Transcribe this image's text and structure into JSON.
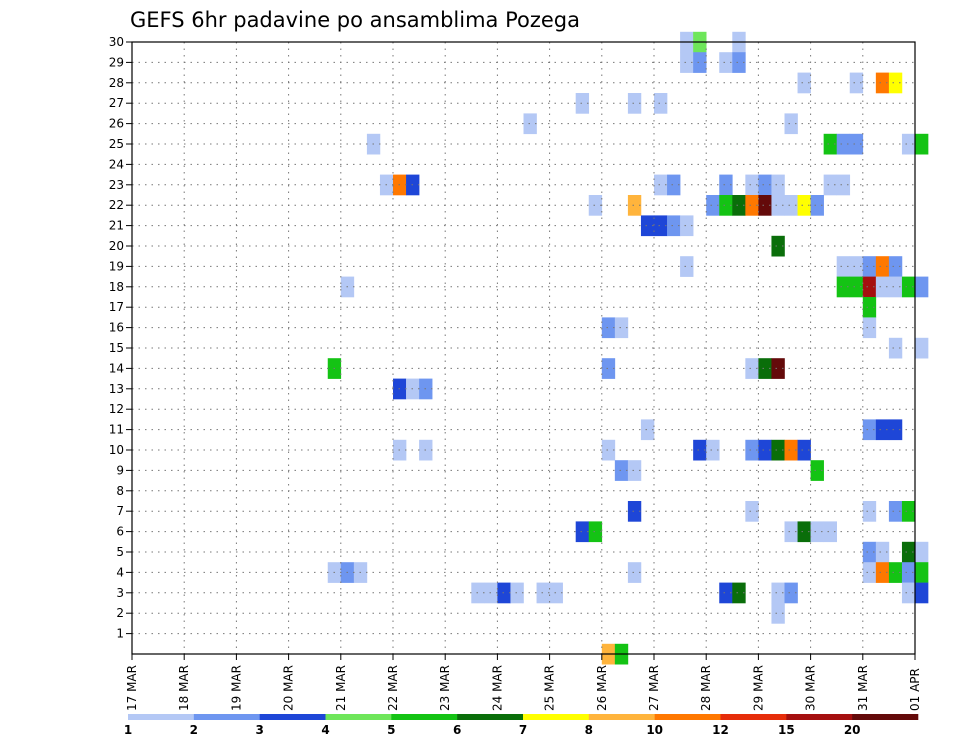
{
  "chart_data": {
    "type": "heatmap",
    "title": "GEFS 6hr padavine po ansamblima Pozega",
    "x_labels": [
      "17 MAR",
      "18 MAR",
      "19 MAR",
      "20 MAR",
      "21 MAR",
      "22 MAR",
      "23 MAR",
      "24 MAR",
      "25 MAR",
      "26 MAR",
      "27 MAR",
      "28 MAR",
      "29 MAR",
      "30 MAR",
      "31 MAR",
      "01 APR"
    ],
    "y_labels": [
      "1",
      "2",
      "3",
      "4",
      "5",
      "6",
      "7",
      "8",
      "9",
      "10",
      "11",
      "12",
      "13",
      "14",
      "15",
      "16",
      "17",
      "18",
      "19",
      "20",
      "21",
      "22",
      "23",
      "24",
      "25",
      "26",
      "27",
      "28",
      "29",
      "30"
    ],
    "steps_per_day": 4,
    "grid": true,
    "legend_position": "bottom",
    "legend": {
      "labels": [
        "1",
        "2",
        "3",
        "4",
        "5",
        "6",
        "7",
        "8",
        "10",
        "12",
        "15",
        "20"
      ],
      "colors": [
        "#b4c8f5",
        "#6e96f0",
        "#1e46d7",
        "#6ee65a",
        "#14c314",
        "#0a6e0a",
        "#ffff00",
        "#ffb43c",
        "#ff7800",
        "#e62d0a",
        "#a50f0f",
        "#640a0a"
      ]
    },
    "cells": [
      {
        "member": 30,
        "step": 42,
        "level": 1
      },
      {
        "member": 30,
        "step": 43,
        "level": 4
      },
      {
        "member": 30,
        "step": 46,
        "level": 1
      },
      {
        "member": 29,
        "step": 42,
        "level": 1
      },
      {
        "member": 29,
        "step": 43,
        "level": 2
      },
      {
        "member": 29,
        "step": 45,
        "level": 1
      },
      {
        "member": 29,
        "step": 46,
        "level": 2
      },
      {
        "member": 28,
        "step": 51,
        "level": 1
      },
      {
        "member": 28,
        "step": 55,
        "level": 1
      },
      {
        "member": 28,
        "step": 57,
        "level": 10
      },
      {
        "member": 28,
        "step": 58,
        "level": 7
      },
      {
        "member": 27,
        "step": 34,
        "level": 1
      },
      {
        "member": 27,
        "step": 38,
        "level": 1
      },
      {
        "member": 27,
        "step": 40,
        "level": 1
      },
      {
        "member": 26,
        "step": 30,
        "level": 1
      },
      {
        "member": 26,
        "step": 50,
        "level": 1
      },
      {
        "member": 25,
        "step": 18,
        "level": 1
      },
      {
        "member": 25,
        "step": 53,
        "level": 5
      },
      {
        "member": 25,
        "step": 54,
        "level": 2
      },
      {
        "member": 25,
        "step": 55,
        "level": 2
      },
      {
        "member": 25,
        "step": 59,
        "level": 1
      },
      {
        "member": 25,
        "step": 60,
        "level": 5
      },
      {
        "member": 23,
        "step": 19,
        "level": 1
      },
      {
        "member": 23,
        "step": 20,
        "level": 10
      },
      {
        "member": 23,
        "step": 21,
        "level": 3
      },
      {
        "member": 23,
        "step": 40,
        "level": 1
      },
      {
        "member": 23,
        "step": 41,
        "level": 2
      },
      {
        "member": 23,
        "step": 45,
        "level": 2
      },
      {
        "member": 23,
        "step": 47,
        "level": 1
      },
      {
        "member": 23,
        "step": 48,
        "level": 2
      },
      {
        "member": 23,
        "step": 49,
        "level": 1
      },
      {
        "member": 23,
        "step": 53,
        "level": 1
      },
      {
        "member": 23,
        "step": 54,
        "level": 1
      },
      {
        "member": 22,
        "step": 35,
        "level": 1
      },
      {
        "member": 22,
        "step": 38,
        "level": 8
      },
      {
        "member": 22,
        "step": 44,
        "level": 2
      },
      {
        "member": 22,
        "step": 45,
        "level": 5
      },
      {
        "member": 22,
        "step": 46,
        "level": 6
      },
      {
        "member": 22,
        "step": 47,
        "level": 10
      },
      {
        "member": 22,
        "step": 48,
        "level": 20
      },
      {
        "member": 22,
        "step": 49,
        "level": 1
      },
      {
        "member": 22,
        "step": 50,
        "level": 1
      },
      {
        "member": 22,
        "step": 51,
        "level": 7
      },
      {
        "member": 22,
        "step": 52,
        "level": 2
      },
      {
        "member": 21,
        "step": 39,
        "level": 3
      },
      {
        "member": 21,
        "step": 40,
        "level": 3
      },
      {
        "member": 21,
        "step": 41,
        "level": 2
      },
      {
        "member": 21,
        "step": 42,
        "level": 1
      },
      {
        "member": 20,
        "step": 49,
        "level": 6
      },
      {
        "member": 19,
        "step": 42,
        "level": 1
      },
      {
        "member": 19,
        "step": 54,
        "level": 1
      },
      {
        "member": 19,
        "step": 55,
        "level": 1
      },
      {
        "member": 19,
        "step": 56,
        "level": 2
      },
      {
        "member": 19,
        "step": 57,
        "level": 10
      },
      {
        "member": 19,
        "step": 58,
        "level": 2
      },
      {
        "member": 18,
        "step": 16,
        "level": 1
      },
      {
        "member": 18,
        "step": 54,
        "level": 5
      },
      {
        "member": 18,
        "step": 55,
        "level": 5
      },
      {
        "member": 18,
        "step": 56,
        "level": 15
      },
      {
        "member": 18,
        "step": 57,
        "level": 1
      },
      {
        "member": 18,
        "step": 58,
        "level": 1
      },
      {
        "member": 18,
        "step": 59,
        "level": 5
      },
      {
        "member": 18,
        "step": 60,
        "level": 2
      },
      {
        "member": 17,
        "step": 56,
        "level": 5
      },
      {
        "member": 16,
        "step": 36,
        "level": 2
      },
      {
        "member": 16,
        "step": 37,
        "level": 1
      },
      {
        "member": 16,
        "step": 56,
        "level": 1
      },
      {
        "member": 15,
        "step": 58,
        "level": 1
      },
      {
        "member": 15,
        "step": 60,
        "level": 1
      },
      {
        "member": 14,
        "step": 15,
        "level": 5
      },
      {
        "member": 14,
        "step": 36,
        "level": 2
      },
      {
        "member": 14,
        "step": 47,
        "level": 1
      },
      {
        "member": 14,
        "step": 48,
        "level": 6
      },
      {
        "member": 14,
        "step": 49,
        "level": 20
      },
      {
        "member": 13,
        "step": 20,
        "level": 3
      },
      {
        "member": 13,
        "step": 21,
        "level": 1
      },
      {
        "member": 13,
        "step": 22,
        "level": 2
      },
      {
        "member": 11,
        "step": 39,
        "level": 1
      },
      {
        "member": 11,
        "step": 56,
        "level": 2
      },
      {
        "member": 11,
        "step": 57,
        "level": 3
      },
      {
        "member": 11,
        "step": 58,
        "level": 3
      },
      {
        "member": 10,
        "step": 20,
        "level": 1
      },
      {
        "member": 10,
        "step": 22,
        "level": 1
      },
      {
        "member": 10,
        "step": 36,
        "level": 1
      },
      {
        "member": 10,
        "step": 43,
        "level": 3
      },
      {
        "member": 10,
        "step": 44,
        "level": 1
      },
      {
        "member": 10,
        "step": 47,
        "level": 2
      },
      {
        "member": 10,
        "step": 48,
        "level": 3
      },
      {
        "member": 10,
        "step": 49,
        "level": 6
      },
      {
        "member": 10,
        "step": 50,
        "level": 10
      },
      {
        "member": 10,
        "step": 51,
        "level": 3
      },
      {
        "member": 9,
        "step": 37,
        "level": 2
      },
      {
        "member": 9,
        "step": 38,
        "level": 1
      },
      {
        "member": 9,
        "step": 52,
        "level": 5
      },
      {
        "member": 7,
        "step": 38,
        "level": 3
      },
      {
        "member": 7,
        "step": 47,
        "level": 1
      },
      {
        "member": 7,
        "step": 56,
        "level": 1
      },
      {
        "member": 7,
        "step": 58,
        "level": 2
      },
      {
        "member": 7,
        "step": 59,
        "level": 5
      },
      {
        "member": 6,
        "step": 34,
        "level": 3
      },
      {
        "member": 6,
        "step": 35,
        "level": 5
      },
      {
        "member": 6,
        "step": 50,
        "level": 1
      },
      {
        "member": 6,
        "step": 51,
        "level": 6
      },
      {
        "member": 6,
        "step": 52,
        "level": 1
      },
      {
        "member": 6,
        "step": 53,
        "level": 1
      },
      {
        "member": 5,
        "step": 56,
        "level": 2
      },
      {
        "member": 5,
        "step": 57,
        "level": 1
      },
      {
        "member": 5,
        "step": 59,
        "level": 6
      },
      {
        "member": 5,
        "step": 60,
        "level": 1
      },
      {
        "member": 4,
        "step": 15,
        "level": 1
      },
      {
        "member": 4,
        "step": 16,
        "level": 2
      },
      {
        "member": 4,
        "step": 17,
        "level": 1
      },
      {
        "member": 4,
        "step": 38,
        "level": 1
      },
      {
        "member": 4,
        "step": 56,
        "level": 1
      },
      {
        "member": 4,
        "step": 57,
        "level": 10
      },
      {
        "member": 4,
        "step": 58,
        "level": 5
      },
      {
        "member": 4,
        "step": 59,
        "level": 2
      },
      {
        "member": 4,
        "step": 60,
        "level": 5
      },
      {
        "member": 3,
        "step": 26,
        "level": 1
      },
      {
        "member": 3,
        "step": 27,
        "level": 1
      },
      {
        "member": 3,
        "step": 28,
        "level": 3
      },
      {
        "member": 3,
        "step": 29,
        "level": 1
      },
      {
        "member": 3,
        "step": 31,
        "level": 1
      },
      {
        "member": 3,
        "step": 32,
        "level": 1
      },
      {
        "member": 3,
        "step": 45,
        "level": 3
      },
      {
        "member": 3,
        "step": 46,
        "level": 6
      },
      {
        "member": 3,
        "step": 49,
        "level": 1
      },
      {
        "member": 3,
        "step": 50,
        "level": 2
      },
      {
        "member": 3,
        "step": 59,
        "level": 1
      },
      {
        "member": 3,
        "step": 60,
        "level": 3
      },
      {
        "member": 2,
        "step": 49,
        "level": 1
      },
      {
        "member": 0,
        "step": 36,
        "level": 8
      },
      {
        "member": 0,
        "step": 37,
        "level": 5
      }
    ]
  }
}
